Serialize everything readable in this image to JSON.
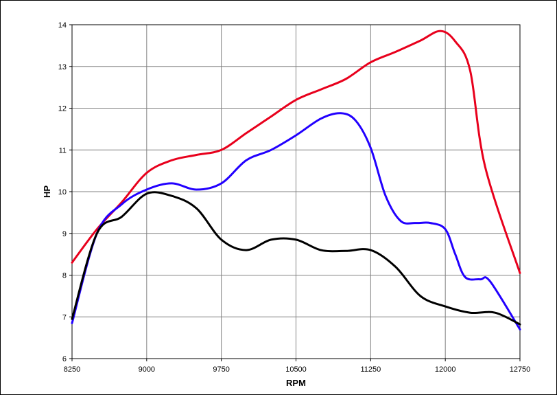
{
  "chart_data": {
    "type": "line",
    "xlabel": "RPM",
    "ylabel": "HP",
    "xlim": [
      8250,
      12750
    ],
    "ylim": [
      6,
      14
    ],
    "xticks": [
      8250,
      9000,
      9750,
      10500,
      11250,
      12000,
      12750
    ],
    "yticks": [
      6,
      7,
      8,
      9,
      10,
      11,
      12,
      13,
      14
    ],
    "grid": true,
    "series": [
      {
        "color": "#e8001c",
        "x": [
          8250,
          8500,
          8750,
          9000,
          9250,
          9500,
          9750,
          10000,
          10250,
          10500,
          10750,
          11000,
          11250,
          11500,
          11750,
          11950,
          12100,
          12250,
          12400,
          12750
        ],
        "values": [
          8.3,
          9.1,
          9.75,
          10.45,
          10.75,
          10.88,
          11.0,
          11.4,
          11.8,
          12.2,
          12.45,
          12.7,
          13.1,
          13.35,
          13.62,
          13.85,
          13.6,
          12.9,
          10.6,
          8.05
        ]
      },
      {
        "color": "#2200ff",
        "x": [
          8250,
          8500,
          8750,
          9000,
          9250,
          9500,
          9750,
          10000,
          10250,
          10500,
          10750,
          10950,
          11100,
          11250,
          11400,
          11550,
          11700,
          11850,
          12000,
          12100,
          12200,
          12350,
          12450,
          12750
        ],
        "values": [
          6.85,
          9.0,
          9.7,
          10.05,
          10.2,
          10.05,
          10.2,
          10.75,
          11.0,
          11.35,
          11.75,
          11.88,
          11.7,
          11.05,
          9.9,
          9.3,
          9.25,
          9.25,
          9.1,
          8.5,
          7.95,
          7.9,
          7.85,
          6.7
        ]
      },
      {
        "color": "#000000",
        "x": [
          8250,
          8500,
          8750,
          9000,
          9250,
          9500,
          9750,
          10000,
          10250,
          10500,
          10750,
          11000,
          11250,
          11500,
          11750,
          12000,
          12250,
          12500,
          12750
        ],
        "values": [
          6.95,
          9.0,
          9.4,
          9.95,
          9.9,
          9.6,
          8.85,
          8.6,
          8.85,
          8.85,
          8.6,
          8.58,
          8.6,
          8.2,
          7.5,
          7.25,
          7.1,
          7.1,
          6.82
        ]
      }
    ]
  }
}
